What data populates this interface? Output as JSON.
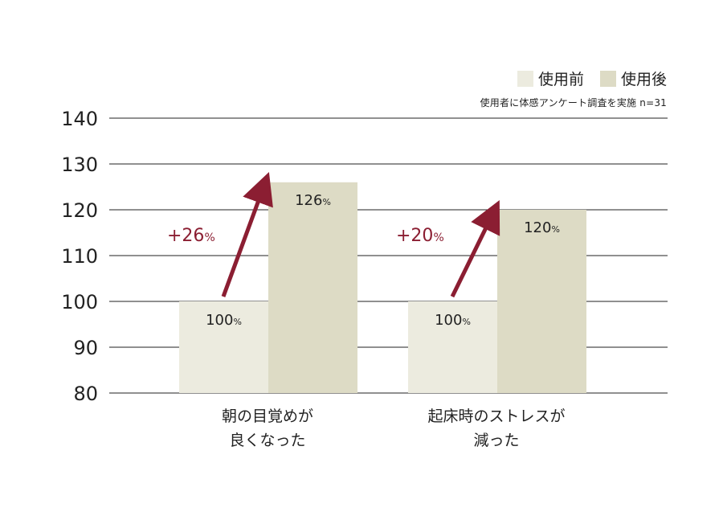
{
  "legend": {
    "before": "使用前",
    "after": "使用後"
  },
  "note": "使用者に体感アンケート調査を実施 n=31",
  "colors": {
    "before": "#ecebdf",
    "after": "#dddbc5",
    "arrow": "#8b1e32",
    "grid": "#222222",
    "text": "#222222"
  },
  "chart_data": {
    "type": "bar",
    "categories": [
      "朝の目覚めが\n良くなった",
      "起床時のストレスが\n減った"
    ],
    "category_lines": [
      [
        "朝の目覚めが",
        "良くなった"
      ],
      [
        "起床時のストレスが",
        "減った"
      ]
    ],
    "series": [
      {
        "name": "使用前",
        "values": [
          100,
          100
        ],
        "labels": [
          "100%",
          "100%"
        ]
      },
      {
        "name": "使用後",
        "values": [
          126,
          120
        ],
        "labels": [
          "126%",
          "120%"
        ]
      }
    ],
    "annotations": [
      "+26%",
      "+20%"
    ],
    "ylim": [
      80,
      140
    ],
    "yticks": [
      80,
      90,
      100,
      110,
      120,
      130,
      140
    ],
    "grid": true,
    "legend_position": "top-right"
  }
}
